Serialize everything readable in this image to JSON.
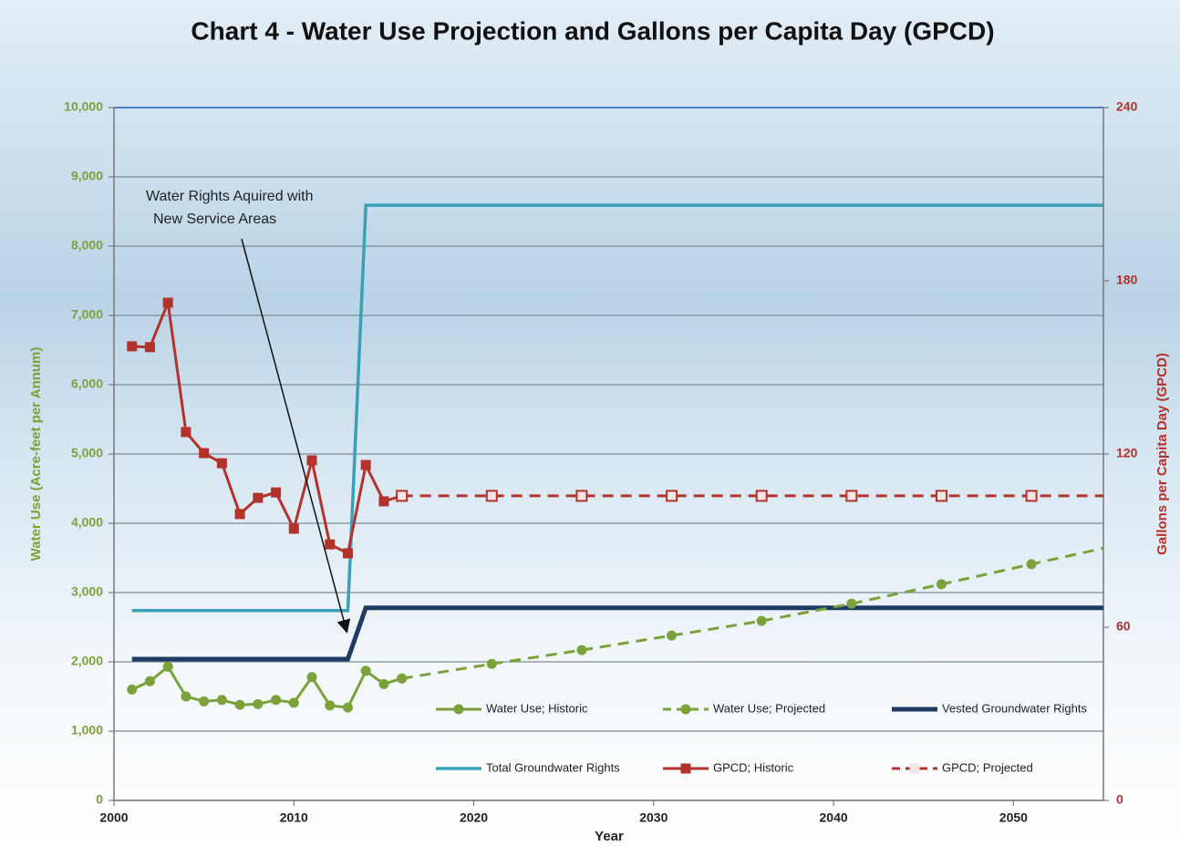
{
  "chart_data": {
    "type": "line",
    "title": "Chart 4 - Water Use Projection and Gallons per Capita Day (GPCD)",
    "x_label": "Year",
    "y_label": "Water Use (Acre-feet per Annum)",
    "y2_label": "Gallons per Capita Day (GPCD)",
    "annotation": [
      "Water Rights Aquired with",
      "New Service Areas"
    ],
    "xlim": [
      2000,
      2055
    ],
    "xticks": [
      2000,
      2010,
      2020,
      2030,
      2040,
      2050
    ],
    "ylim": [
      0,
      10000
    ],
    "yticks": [
      0,
      {
        "value": 1000,
        "label": "1,000"
      },
      {
        "value": 2000,
        "label": "2,000"
      },
      {
        "value": 3000,
        "label": "3,000"
      },
      {
        "value": 4000,
        "label": "4,000"
      },
      {
        "value": 5000,
        "label": "5,000"
      },
      {
        "value": 6000,
        "label": "6,000"
      },
      {
        "value": 7000,
        "label": "7,000"
      },
      {
        "value": 8000,
        "label": "8,000"
      },
      {
        "value": 9000,
        "label": "9,000"
      },
      {
        "value": 10000,
        "label": "10,000"
      }
    ],
    "y2lim": [
      0,
      240
    ],
    "y2ticks": [
      0,
      60,
      120,
      180,
      240
    ],
    "grid": true,
    "series": [
      {
        "name": "Water Use; Historic",
        "color": "#7ba23a",
        "marker": "circle",
        "dash": false,
        "width": 3,
        "x": [
          2001,
          2002,
          2003,
          2004,
          2005,
          2006,
          2007,
          2008,
          2009,
          2010,
          2011,
          2012,
          2013,
          2014,
          2015,
          2016
        ],
        "values": [
          1600,
          1720,
          1930,
          1500,
          1430,
          1450,
          1380,
          1390,
          1450,
          1410,
          1780,
          1370,
          1340,
          1870,
          1680,
          1760
        ]
      },
      {
        "name": "Water Use; Projected",
        "color": "#7ba23a",
        "marker": "circle",
        "dash": true,
        "width": 3,
        "x": [
          2016,
          2021,
          2026,
          2031,
          2036,
          2041,
          2046,
          2051,
          2055
        ],
        "values": [
          1760,
          1970,
          2170,
          2380,
          2590,
          2840,
          3120,
          3410,
          3640
        ]
      },
      {
        "name": "Vested Groundwater Rights",
        "color": "#1f3a63",
        "marker": "none",
        "dash": false,
        "width": 5,
        "x": [
          2001,
          2013,
          2014,
          2055
        ],
        "values": [
          2040,
          2040,
          2780,
          2780
        ]
      },
      {
        "name": "Total Groundwater Rights",
        "color": "#3aa0b8",
        "marker": "none",
        "dash": false,
        "width": 3.5,
        "x": [
          2001,
          2013,
          2014,
          2055
        ],
        "values": [
          2740,
          2740,
          8590,
          8590
        ]
      },
      {
        "name": "GPCD; Historic",
        "color": "#b3322c",
        "marker": "square",
        "dash": false,
        "width": 3,
        "axis": "y2",
        "x": [
          2001,
          2002,
          2003,
          2004,
          2005,
          2006,
          2007,
          2008,
          2009,
          2010,
          2011,
          2012,
          2013,
          2014,
          2015,
          2016
        ],
        "values": [
          157.3,
          157,
          172.4,
          127.6,
          120.3,
          116.8,
          99.2,
          104.8,
          106.7,
          94.1,
          117.8,
          88.7,
          85.6,
          116.2,
          103.6,
          105.5
        ]
      },
      {
        "name": "GPCD; Projected",
        "color": "#b3322c",
        "marker": "square",
        "dash": true,
        "width": 3,
        "axis": "y2",
        "x": [
          2016,
          2021,
          2026,
          2031,
          2036,
          2041,
          2046,
          2051,
          2055
        ],
        "values": [
          105.5,
          105.5,
          105.5,
          105.5,
          105.5,
          105.5,
          105.5,
          105.5,
          105.5
        ]
      }
    ]
  }
}
